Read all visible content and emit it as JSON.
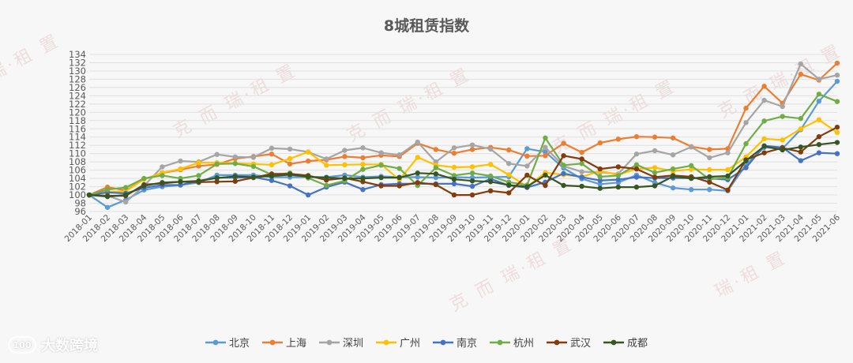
{
  "chart_data": {
    "type": "line",
    "title": "8城租赁指数",
    "xlabel": "",
    "ylabel": "",
    "ylim": [
      96,
      134
    ],
    "yticks": [
      96,
      98,
      100,
      102,
      104,
      106,
      108,
      110,
      112,
      114,
      116,
      118,
      120,
      122,
      124,
      126,
      128,
      130,
      132,
      134
    ],
    "grid": "horizontal",
    "legend_position": "bottom",
    "categories": [
      "2018-01",
      "2018-02",
      "2018-03",
      "2018-04",
      "2018-05",
      "2018-06",
      "2018-07",
      "2018-08",
      "2018-09",
      "2018-10",
      "2018-11",
      "2018-12",
      "2019-01",
      "2019-02",
      "2019-03",
      "2019-04",
      "2019-05",
      "2019-06",
      "2019-07",
      "2019-08",
      "2019-09",
      "2019-10",
      "2019-11",
      "2019-12",
      "2020-01",
      "2020-02",
      "2020-03",
      "2020-04",
      "2020-05",
      "2020-06",
      "2020-07",
      "2020-08",
      "2020-09",
      "2020-10",
      "2020-11",
      "2020-12",
      "2021-01",
      "2021-02",
      "2021-03",
      "2021-04",
      "2021-05",
      "2021-06"
    ],
    "series": [
      {
        "name": "北京",
        "color": "#5b9bd5",
        "values": [
          100,
          97,
          98.8,
          101.2,
          102,
          102.4,
          103,
          104.8,
          104.8,
          104.8,
          104.3,
          104.3,
          104.3,
          104.3,
          104.8,
          104.3,
          104.5,
          104.3,
          104.3,
          104.2,
          104.3,
          104.2,
          104.3,
          104.4,
          111.2,
          110.4,
          106.5,
          103.9,
          102.6,
          103,
          104.8,
          103,
          101.7,
          101.3,
          101.3,
          101,
          107.3,
          111.5,
          111.2,
          115.8,
          122.7,
          127.5
        ]
      },
      {
        "name": "上海",
        "color": "#ed7d31",
        "values": [
          100,
          101.9,
          101.1,
          103.8,
          105.3,
          106.1,
          107,
          107.4,
          108.8,
          109.3,
          109.9,
          107.5,
          108.2,
          108.5,
          109.3,
          109,
          109.6,
          109.3,
          112.5,
          111,
          110.1,
          111,
          111.5,
          110.9,
          109.4,
          109.5,
          112.5,
          110.3,
          112.6,
          113.5,
          114.1,
          114,
          113.8,
          111.7,
          111,
          111.2,
          121,
          126.3,
          122.2,
          129.2,
          127.8,
          131.9
        ]
      },
      {
        "name": "深圳",
        "color": "#a5a5a5",
        "values": [
          100,
          99.8,
          98.3,
          102.2,
          106.8,
          108.2,
          108,
          109.8,
          109.2,
          109.1,
          111.3,
          111.1,
          110.4,
          108.7,
          110.8,
          111.4,
          110.2,
          109.7,
          112.8,
          108,
          111.4,
          112.1,
          111.1,
          107.6,
          107,
          111.5,
          107,
          105.6,
          105.5,
          105.1,
          109.9,
          110.7,
          109.7,
          111.6,
          109,
          110.2,
          117.5,
          122.9,
          121.4,
          131.7,
          128,
          129
        ]
      },
      {
        "name": "广州",
        "color": "#ffc000",
        "values": [
          100,
          100.8,
          100.9,
          103.8,
          105.4,
          106.3,
          107.8,
          107.8,
          107.7,
          107.5,
          107.3,
          108.8,
          110.4,
          107.2,
          107.3,
          107.4,
          107.4,
          103.7,
          109.1,
          107.2,
          106.7,
          106.8,
          107.4,
          104.9,
          102,
          105.4,
          104.9,
          104.4,
          105.8,
          104.9,
          106.3,
          106.6,
          105.8,
          106.2,
          106.1,
          106.1,
          109.2,
          113.6,
          113.3,
          116,
          118.2,
          115.1
        ]
      },
      {
        "name": "南京",
        "color": "#4472c4",
        "values": [
          100,
          100.6,
          100.4,
          101.7,
          102.4,
          102.4,
          103.4,
          104.2,
          104.2,
          104.3,
          103.5,
          102.2,
          100,
          101.9,
          103.1,
          101.3,
          102.5,
          102.7,
          102.7,
          102.7,
          102.7,
          102.1,
          103.9,
          102.3,
          101.8,
          103.1,
          105.2,
          104.3,
          103.5,
          103.7,
          104.3,
          104.1,
          104.1,
          104.1,
          104,
          103.7,
          106.6,
          111.9,
          111.5,
          108.3,
          110.2,
          110
        ]
      },
      {
        "name": "杭州",
        "color": "#70ad47",
        "values": [
          100,
          101.3,
          101.8,
          104,
          104.7,
          104,
          104.7,
          107.5,
          107.6,
          106.9,
          104.9,
          105.3,
          104.1,
          102.3,
          103.4,
          106.2,
          107.2,
          106.4,
          102.3,
          106.6,
          104.7,
          105.3,
          104.6,
          103.1,
          102.4,
          113.8,
          107.2,
          107.6,
          104.4,
          104.7,
          107.3,
          105.4,
          106.3,
          107.1,
          103.8,
          104.2,
          112.4,
          117.9,
          119,
          118.5,
          124.4,
          122.6
        ]
      },
      {
        "name": "武汉",
        "color": "#843c0c",
        "values": [
          100,
          99.8,
          99.8,
          102.5,
          102.8,
          103.2,
          103.1,
          103.2,
          103.3,
          104.2,
          105.1,
          105.1,
          104.7,
          103.6,
          104.1,
          103.2,
          102.2,
          102.2,
          103,
          102.5,
          100,
          100,
          101,
          100.5,
          104.8,
          102.3,
          109.5,
          108.7,
          106.3,
          106.8,
          106.3,
          104.3,
          104.7,
          104.4,
          103.1,
          101.2,
          108.5,
          110.2,
          111.4,
          110.4,
          114.1,
          116.4
        ]
      },
      {
        "name": "成都",
        "color": "#375623",
        "values": [
          100,
          99.6,
          100,
          102.2,
          103,
          103.2,
          103.4,
          104.1,
          104.5,
          104.3,
          104.6,
          104.9,
          104.4,
          104.2,
          104,
          104,
          104.2,
          104.2,
          105.3,
          105.1,
          103.8,
          103.4,
          103.2,
          102.4,
          102,
          104.8,
          102.3,
          102.1,
          101.6,
          101.9,
          101.9,
          102.2,
          104.5,
          104,
          104.4,
          104.6,
          108.3,
          111.8,
          110.9,
          111.6,
          112.2,
          112.7
        ]
      }
    ]
  },
  "watermarks": [
    "瑞·租 置",
    "克 而 瑞·租 置",
    "克 而 瑞·租 置",
    "克 而 瑞·租 置",
    "克 而 瑞·租 置",
    "克 而 瑞·租 置",
    "瑞·租 置"
  ],
  "brand": {
    "logo_text": "100",
    "name": "大数跨境"
  }
}
